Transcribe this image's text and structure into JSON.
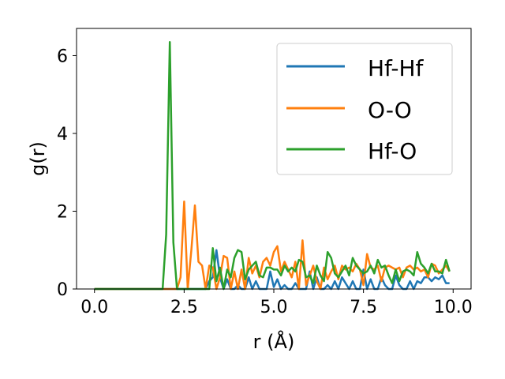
{
  "chart_data": {
    "type": "line",
    "title": "",
    "xlabel": "r (Å)",
    "ylabel": "g(r)",
    "xlim": [
      -0.5,
      10.5
    ],
    "ylim": [
      0,
      6.7
    ],
    "xticks": [
      0.0,
      2.5,
      5.0,
      7.5,
      10.0
    ],
    "xtick_labels": [
      "0.0",
      "2.5",
      "5.0",
      "7.5",
      "10.0"
    ],
    "yticks": [
      0,
      2,
      4,
      6
    ],
    "ytick_labels": [
      "0",
      "2",
      "4",
      "6"
    ],
    "grid": false,
    "legend_position": "top-right",
    "series": [
      {
        "name": "Hf-Hf",
        "color": "#1f77b4",
        "x": [
          0,
          1.9,
          3.1,
          3.2,
          3.3,
          3.4,
          3.5,
          3.6,
          3.7,
          3.8,
          3.9,
          4.0,
          4.1,
          4.2,
          4.3,
          4.4,
          4.5,
          4.6,
          4.7,
          4.8,
          4.9,
          5.0,
          5.1,
          5.2,
          5.3,
          5.4,
          5.5,
          5.6,
          5.7,
          5.8,
          5.9,
          6.0,
          6.1,
          6.2,
          6.3,
          6.4,
          6.5,
          6.6,
          6.7,
          6.8,
          6.9,
          7.0,
          7.1,
          7.2,
          7.3,
          7.4,
          7.5,
          7.6,
          7.7,
          7.8,
          7.9,
          8.0,
          8.1,
          8.2,
          8.3,
          8.4,
          8.5,
          8.6,
          8.7,
          8.8,
          8.9,
          9.0,
          9.1,
          9.2,
          9.3,
          9.4,
          9.5,
          9.6,
          9.7,
          9.8,
          9.9
        ],
        "y": [
          0,
          0,
          0,
          0.2,
          0.3,
          1.0,
          0.3,
          0,
          0.25,
          0,
          0,
          0.1,
          0,
          0,
          0.3,
          0,
          0.2,
          0,
          0,
          0,
          0.45,
          0.05,
          0.25,
          0,
          0.1,
          0,
          0,
          0.15,
          0,
          0,
          0,
          0.45,
          0,
          0.3,
          0,
          0,
          0.1,
          0,
          0.2,
          0,
          0.3,
          0.15,
          0,
          0.2,
          0,
          0,
          0.5,
          0,
          0.25,
          0,
          0,
          0.3,
          0.1,
          0,
          0,
          0.35,
          0.1,
          0,
          0,
          0.2,
          0,
          0.2,
          0.15,
          0.3,
          0.3,
          0.2,
          0.3,
          0.25,
          0.35,
          0.15,
          0.15
        ]
      },
      {
        "name": "O-O",
        "color": "#ff7f0e",
        "x": [
          0,
          2.3,
          2.4,
          2.5,
          2.6,
          2.7,
          2.8,
          2.9,
          3.0,
          3.1,
          3.2,
          3.3,
          3.4,
          3.5,
          3.6,
          3.7,
          3.8,
          3.9,
          4.0,
          4.1,
          4.2,
          4.3,
          4.4,
          4.5,
          4.6,
          4.7,
          4.8,
          4.9,
          5.0,
          5.1,
          5.2,
          5.3,
          5.4,
          5.5,
          5.6,
          5.7,
          5.8,
          5.9,
          6.0,
          6.1,
          6.2,
          6.3,
          6.4,
          6.5,
          6.6,
          6.7,
          6.8,
          6.9,
          7.0,
          7.1,
          7.2,
          7.3,
          7.4,
          7.5,
          7.6,
          7.7,
          7.8,
          7.9,
          8.0,
          8.1,
          8.2,
          8.3,
          8.4,
          8.5,
          8.6,
          8.7,
          8.8,
          8.9,
          9.0,
          9.1,
          9.2,
          9.3,
          9.4,
          9.5,
          9.6,
          9.7,
          9.8,
          9.9
        ],
        "y": [
          0,
          0,
          0.3,
          2.25,
          0,
          1.0,
          2.15,
          0.7,
          0.6,
          0,
          0.6,
          0.55,
          0,
          0.3,
          0.85,
          0.8,
          0,
          0.45,
          0,
          0.5,
          0,
          0.8,
          0.4,
          0.6,
          0.3,
          0.7,
          0.8,
          0.6,
          0.95,
          1.1,
          0.45,
          0.7,
          0.5,
          0.3,
          0.7,
          0,
          1.25,
          0.1,
          0.35,
          0.6,
          0.2,
          0,
          0.55,
          0.25,
          0.45,
          0.6,
          0.25,
          0.6,
          0.5,
          0.55,
          0.45,
          0.65,
          0.5,
          0.1,
          0.9,
          0.55,
          0.5,
          0.6,
          0.2,
          0.55,
          0.6,
          0.55,
          0.5,
          0.55,
          0.3,
          0.55,
          0.6,
          0.5,
          0.55,
          0.45,
          0.5,
          0.3,
          0.65,
          0.6,
          0.4,
          0.5,
          0.6,
          0.45
        ]
      },
      {
        "name": "Hf-O",
        "color": "#2ca02c",
        "x": [
          0,
          1.9,
          2.0,
          2.1,
          2.2,
          2.3,
          3.2,
          3.3,
          3.4,
          3.5,
          3.6,
          3.7,
          3.8,
          3.9,
          4.0,
          4.1,
          4.2,
          4.3,
          4.4,
          4.5,
          4.6,
          4.7,
          4.8,
          4.9,
          5.0,
          5.1,
          5.2,
          5.3,
          5.4,
          5.5,
          5.6,
          5.7,
          5.8,
          5.9,
          6.0,
          6.1,
          6.2,
          6.3,
          6.4,
          6.5,
          6.6,
          6.7,
          6.8,
          6.9,
          7.0,
          7.1,
          7.2,
          7.3,
          7.4,
          7.5,
          7.6,
          7.7,
          7.8,
          7.9,
          8.0,
          8.1,
          8.2,
          8.3,
          8.4,
          8.5,
          8.6,
          8.7,
          8.8,
          8.9,
          9.0,
          9.1,
          9.2,
          9.3,
          9.4,
          9.5,
          9.6,
          9.7,
          9.8,
          9.9
        ],
        "y": [
          0,
          0,
          1.4,
          6.35,
          1.2,
          0,
          0,
          1.05,
          0.2,
          0.55,
          0,
          0.5,
          0.3,
          0.8,
          1.0,
          0.95,
          0.25,
          0.5,
          0.6,
          0.7,
          0.35,
          0.3,
          0.55,
          0.55,
          0.5,
          0.5,
          0.35,
          0.6,
          0.45,
          0.55,
          0.45,
          0.75,
          0.7,
          0.3,
          0.35,
          0.15,
          0.6,
          0.35,
          0.2,
          0.95,
          0.8,
          0.4,
          0.3,
          0.45,
          0.6,
          0.35,
          0.8,
          0.6,
          0.5,
          0.4,
          0.45,
          0.6,
          0.4,
          0.75,
          0.55,
          0.6,
          0.35,
          0.15,
          0.5,
          0.2,
          0.45,
          0.5,
          0.45,
          0.35,
          0.95,
          0.65,
          0.55,
          0.4,
          0.65,
          0.45,
          0.45,
          0.4,
          0.75,
          0.45
        ]
      }
    ]
  }
}
